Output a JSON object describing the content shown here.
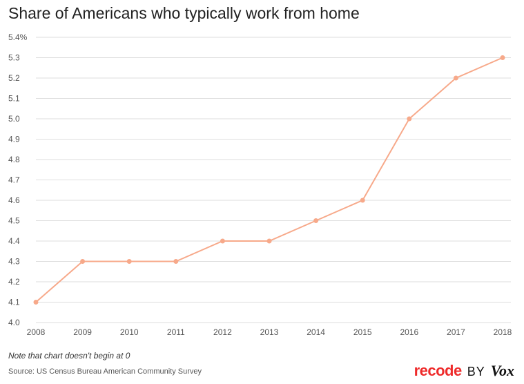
{
  "title": "Share of Americans who typically work from home",
  "note": "Note that chart doesn't begin at 0",
  "source": "Source: US Census Bureau American Community Survey",
  "brand": {
    "recode": "recode",
    "by": "BY",
    "vox": "Vox"
  },
  "colors": {
    "line": "#f7a98a",
    "grid": "#dedede",
    "text": "#222222",
    "brand_red": "#ee2a2a"
  },
  "chart_data": {
    "type": "line",
    "title": "Share of Americans who typically work from home",
    "xlabel": "",
    "ylabel": "",
    "ylim": [
      4.0,
      5.4
    ],
    "grid": true,
    "x": [
      "2008",
      "2009",
      "2010",
      "2011",
      "2012",
      "2013",
      "2014",
      "2015",
      "2016",
      "2017",
      "2018"
    ],
    "series": [
      {
        "values": [
          4.1,
          4.3,
          4.3,
          4.3,
          4.4,
          4.4,
          4.5,
          4.6,
          5.0,
          5.2,
          5.3
        ]
      }
    ],
    "y_ticks": [
      "4.0",
      "4.1",
      "4.2",
      "4.3",
      "4.4",
      "4.5",
      "4.6",
      "4.7",
      "4.8",
      "4.9",
      "5.0",
      "5.1",
      "5.2",
      "5.3",
      "5.4%"
    ]
  }
}
